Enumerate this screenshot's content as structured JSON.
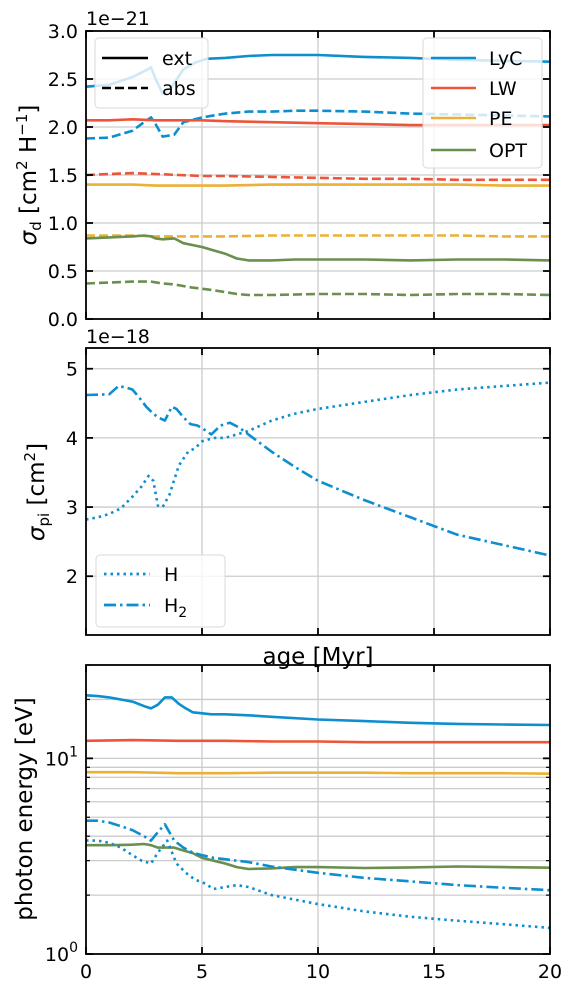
{
  "colors": {
    "lyc": "#0d8ecf",
    "lw": "#ee5437",
    "pe": "#ebb135",
    "opt": "#6a8f4e",
    "grid": "#cccccc"
  },
  "chart_data": [
    {
      "type": "line",
      "ylabel": "σ_d [cm² H⁻¹]",
      "ylabel_main": "σ",
      "ylabel_sub": "d",
      "ylabel_unit": " [cm",
      "ylabel_sup": "2",
      "ylabel_unit2": " H",
      "ylabel_sup2": "−1",
      "ylabel_end": "]",
      "scale_text": "1e−21",
      "xlim": [
        0,
        20
      ],
      "ylim": [
        0,
        3.0
      ],
      "yticks": [
        "0.0",
        "0.5",
        "1.0",
        "1.5",
        "2.0",
        "2.5",
        "3.0"
      ],
      "ytick_values": [
        0,
        0.5,
        1.0,
        1.5,
        2.0,
        2.5,
        3.0
      ],
      "xticks": [
        0,
        5,
        10,
        15,
        20
      ],
      "grid": true,
      "style_legend": [
        "ext",
        "abs"
      ],
      "band_legend": [
        "LyC",
        "LW",
        "PE",
        "OPT"
      ],
      "series": [
        {
          "name": "LyC",
          "style": "ext",
          "color": "lyc",
          "x": [
            0,
            1,
            2,
            2.5,
            2.8,
            3.0,
            3.3,
            3.7,
            4.2,
            4.7,
            5.2,
            6,
            7,
            8,
            9,
            10,
            12,
            14,
            16,
            18,
            20
          ],
          "y": [
            2.42,
            2.44,
            2.52,
            2.58,
            2.62,
            2.5,
            2.35,
            2.42,
            2.6,
            2.67,
            2.71,
            2.72,
            2.74,
            2.75,
            2.75,
            2.75,
            2.73,
            2.72,
            2.7,
            2.69,
            2.68
          ]
        },
        {
          "name": "LyC",
          "style": "abs",
          "color": "lyc",
          "x": [
            0,
            1,
            2,
            2.5,
            2.8,
            3.0,
            3.3,
            3.8,
            4.2,
            5,
            6,
            7,
            8,
            9,
            10,
            12,
            14,
            16,
            18,
            20
          ],
          "y": [
            1.88,
            1.89,
            1.96,
            2.05,
            2.1,
            2.03,
            1.9,
            1.92,
            2.05,
            2.1,
            2.14,
            2.16,
            2.16,
            2.17,
            2.17,
            2.16,
            2.14,
            2.13,
            2.12,
            2.11
          ]
        },
        {
          "name": "LW",
          "style": "ext",
          "color": "lw",
          "x": [
            0,
            1,
            2,
            3,
            4,
            5,
            6,
            8,
            10,
            12,
            14,
            16,
            18,
            20
          ],
          "y": [
            2.07,
            2.07,
            2.08,
            2.07,
            2.07,
            2.07,
            2.06,
            2.05,
            2.04,
            2.03,
            2.02,
            2.02,
            2.02,
            2.02
          ]
        },
        {
          "name": "LW",
          "style": "abs",
          "color": "lw",
          "x": [
            0,
            1,
            2,
            3,
            4,
            5,
            6,
            8,
            10,
            12,
            14,
            16,
            18,
            20
          ],
          "y": [
            1.5,
            1.51,
            1.52,
            1.51,
            1.5,
            1.49,
            1.49,
            1.48,
            1.47,
            1.46,
            1.46,
            1.45,
            1.45,
            1.45
          ]
        },
        {
          "name": "PE",
          "style": "ext",
          "color": "pe",
          "x": [
            0,
            2,
            3,
            4,
            5,
            6,
            8,
            10,
            12,
            14,
            16,
            18,
            20
          ],
          "y": [
            1.4,
            1.4,
            1.39,
            1.39,
            1.39,
            1.39,
            1.4,
            1.4,
            1.4,
            1.4,
            1.4,
            1.39,
            1.39
          ]
        },
        {
          "name": "PE",
          "style": "abs",
          "color": "pe",
          "x": [
            0,
            2,
            3,
            4,
            5,
            6,
            8,
            10,
            12,
            14,
            16,
            18,
            20
          ],
          "y": [
            0.87,
            0.87,
            0.86,
            0.86,
            0.86,
            0.86,
            0.87,
            0.87,
            0.87,
            0.87,
            0.87,
            0.86,
            0.86
          ]
        },
        {
          "name": "OPT",
          "style": "ext",
          "color": "opt",
          "x": [
            0,
            1,
            2,
            2.5,
            2.8,
            3.0,
            3.3,
            3.8,
            4.2,
            5,
            6,
            6.5,
            7,
            8,
            9,
            10,
            12,
            14,
            16,
            18,
            20
          ],
          "y": [
            0.84,
            0.85,
            0.86,
            0.87,
            0.86,
            0.84,
            0.83,
            0.84,
            0.79,
            0.75,
            0.68,
            0.63,
            0.61,
            0.61,
            0.62,
            0.62,
            0.62,
            0.61,
            0.62,
            0.62,
            0.61
          ]
        },
        {
          "name": "OPT",
          "style": "abs",
          "color": "opt",
          "x": [
            0,
            1,
            2,
            2.8,
            3.3,
            3.8,
            4.5,
            5.5,
            6.5,
            7,
            8,
            10,
            12,
            14,
            16,
            18,
            20
          ],
          "y": [
            0.37,
            0.38,
            0.39,
            0.39,
            0.37,
            0.36,
            0.33,
            0.3,
            0.26,
            0.25,
            0.25,
            0.26,
            0.26,
            0.25,
            0.26,
            0.26,
            0.25
          ]
        }
      ]
    },
    {
      "type": "line",
      "ylabel": "σ_pi [cm²]",
      "ylabel_main": "σ",
      "ylabel_sub": "pi",
      "ylabel_unit": " [cm",
      "ylabel_sup": "2",
      "ylabel_end": "]",
      "scale_text": "1e−18",
      "xlabel": "age [Myr]",
      "xlim": [
        0,
        20
      ],
      "ylim": [
        1.15,
        5.3
      ],
      "yticks": [
        "2",
        "3",
        "4",
        "5"
      ],
      "ytick_values": [
        2,
        3,
        4,
        5
      ],
      "xticks": [
        0,
        5,
        10,
        15,
        20
      ],
      "grid": true,
      "legend_H": "H",
      "legend_H2_main": "H",
      "legend_H2_sub": "2",
      "series": [
        {
          "name": "H",
          "style": "dotted",
          "color": "lyc",
          "x": [
            0,
            0.5,
            1,
            1.5,
            2,
            2.4,
            2.7,
            2.9,
            3.1,
            3.3,
            3.6,
            4.0,
            4.4,
            4.7,
            5.0,
            5.5,
            6.0,
            7,
            8,
            9,
            10,
            12,
            14,
            16,
            18,
            20
          ],
          "y": [
            2.82,
            2.85,
            2.9,
            2.98,
            3.15,
            3.3,
            3.45,
            3.38,
            3.02,
            3.0,
            3.18,
            3.6,
            3.8,
            3.85,
            3.95,
            4.0,
            4.0,
            4.1,
            4.25,
            4.35,
            4.42,
            4.52,
            4.62,
            4.7,
            4.75,
            4.8
          ]
        },
        {
          "name": "H2",
          "style": "dashdot",
          "color": "lyc",
          "x": [
            0,
            1,
            1.4,
            1.7,
            2.0,
            2.3,
            2.6,
            2.9,
            3.1,
            3.4,
            3.7,
            3.9,
            4.2,
            4.5,
            4.8,
            5.1,
            5.4,
            5.8,
            6.2,
            6.6,
            7,
            8,
            9,
            10,
            12,
            14,
            16,
            18,
            20
          ],
          "y": [
            4.62,
            4.63,
            4.75,
            4.73,
            4.7,
            4.58,
            4.45,
            4.35,
            4.3,
            4.25,
            4.45,
            4.42,
            4.3,
            4.2,
            4.18,
            4.12,
            4.05,
            4.18,
            4.22,
            4.15,
            4.05,
            3.8,
            3.58,
            3.38,
            3.1,
            2.85,
            2.6,
            2.45,
            2.3
          ]
        }
      ]
    },
    {
      "type": "line",
      "ylabel": "photon energy  [eV]",
      "xlim": [
        0,
        20
      ],
      "ylim": [
        1,
        30
      ],
      "yscale": "log",
      "yticks_major": [
        {
          "value": 1,
          "base": "10",
          "exp": "0"
        },
        {
          "value": 10,
          "base": "10",
          "exp": "1"
        }
      ],
      "xticks": [
        "0",
        "5",
        "10",
        "15",
        "20"
      ],
      "xtick_values": [
        0,
        5,
        10,
        15,
        20
      ],
      "grid": true,
      "series": [
        {
          "name": "LyC",
          "style": "solid",
          "color": "lyc",
          "x": [
            0,
            0.5,
            1,
            1.5,
            2,
            2.5,
            2.8,
            3.1,
            3.4,
            3.7,
            4.0,
            4.3,
            4.6,
            5.0,
            5.4,
            6,
            7,
            8,
            10,
            12,
            14,
            16,
            18,
            20
          ],
          "y": [
            21.0,
            20.8,
            20.5,
            20.0,
            19.5,
            18.5,
            18.0,
            18.8,
            20.5,
            20.5,
            19.0,
            18.0,
            17.2,
            17.0,
            16.8,
            16.8,
            16.6,
            16.3,
            15.8,
            15.5,
            15.2,
            15.0,
            14.9,
            14.8
          ]
        },
        {
          "name": "LW",
          "style": "solid",
          "color": "lw",
          "x": [
            0,
            2,
            4,
            6,
            8,
            10,
            12,
            14,
            16,
            18,
            20
          ],
          "y": [
            12.3,
            12.4,
            12.3,
            12.3,
            12.2,
            12.2,
            12.1,
            12.1,
            12.1,
            12.1,
            12.1
          ]
        },
        {
          "name": "PE",
          "style": "solid",
          "color": "pe",
          "x": [
            0,
            2,
            4,
            6,
            8,
            10,
            12,
            14,
            16,
            18,
            20
          ],
          "y": [
            8.5,
            8.5,
            8.4,
            8.4,
            8.45,
            8.45,
            8.45,
            8.4,
            8.4,
            8.4,
            8.35
          ]
        },
        {
          "name": "OPT",
          "style": "solid",
          "color": "opt",
          "x": [
            0,
            1,
            2,
            2.5,
            2.8,
            3.1,
            3.4,
            3.8,
            4.2,
            4.6,
            5,
            5.5,
            6,
            6.5,
            7,
            8,
            9,
            10,
            12,
            14,
            16,
            18,
            20
          ],
          "y": [
            3.6,
            3.6,
            3.62,
            3.65,
            3.6,
            3.5,
            3.5,
            3.5,
            3.38,
            3.28,
            3.1,
            3.0,
            2.9,
            2.78,
            2.72,
            2.74,
            2.78,
            2.78,
            2.75,
            2.77,
            2.8,
            2.78,
            2.76
          ]
        },
        {
          "name": "H2",
          "style": "dashdot",
          "color": "lyc",
          "x": [
            0,
            0.5,
            1,
            1.5,
            2,
            2.5,
            2.8,
            3.1,
            3.4,
            3.8,
            4.2,
            4.6,
            5,
            5.5,
            6,
            7,
            8,
            10,
            12,
            14,
            16,
            18,
            20
          ],
          "y": [
            4.8,
            4.8,
            4.7,
            4.5,
            4.3,
            4.0,
            3.8,
            4.2,
            4.6,
            3.8,
            3.5,
            3.3,
            3.2,
            3.1,
            3.05,
            2.95,
            2.8,
            2.6,
            2.45,
            2.35,
            2.25,
            2.18,
            2.12
          ]
        },
        {
          "name": "H",
          "style": "dotted",
          "color": "lyc",
          "x": [
            0,
            0.5,
            1,
            1.5,
            2,
            2.4,
            2.8,
            3.1,
            3.5,
            3.9,
            4.3,
            4.7,
            5.1,
            5.5,
            6,
            6.5,
            7,
            8,
            10,
            12,
            14,
            16,
            18,
            20
          ],
          "y": [
            3.8,
            3.8,
            3.7,
            3.5,
            3.2,
            3.0,
            2.9,
            3.3,
            3.8,
            2.9,
            2.6,
            2.4,
            2.3,
            2.15,
            2.2,
            2.25,
            2.2,
            2.0,
            1.8,
            1.65,
            1.55,
            1.48,
            1.42,
            1.36
          ]
        }
      ]
    }
  ]
}
